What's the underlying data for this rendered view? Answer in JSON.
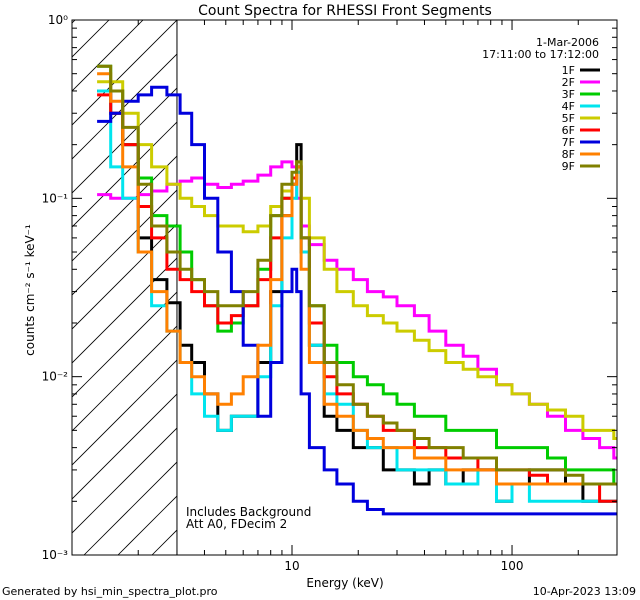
{
  "chart_data": {
    "type": "line",
    "title": "Count Spectra for RHESSI Front Segments",
    "xlabel": "Energy (keV)",
    "ylabel": "counts cm⁻² s⁻¹ keV⁻¹",
    "xscale": "log",
    "yscale": "log",
    "xlim": [
      1.0,
      300
    ],
    "ylim": [
      0.001,
      1.0
    ],
    "x_tick_labels": [
      "10",
      "100"
    ],
    "y_tick_labels": [
      "10⁻³",
      "10⁻²",
      "10⁻¹",
      "10⁰"
    ],
    "date": "1-Mar-2006",
    "time_range": "17:11:00 to 17:12:00",
    "shaded_region": {
      "from": 1.0,
      "to": 3.0,
      "style": "hatched"
    },
    "annotations": [
      "Includes Background",
      "Att A0, FDecim 2"
    ],
    "footer_left": "Generated by hsi_min_spectra_plot.pro",
    "footer_right": "10-Apr-2023 13:09",
    "energy": [
      1.3,
      1.5,
      1.7,
      2.0,
      2.3,
      2.7,
      3.1,
      3.5,
      4.0,
      4.6,
      5.3,
      6.0,
      7.0,
      8.0,
      9.0,
      10.0,
      10.5,
      11.0,
      12.0,
      14.0,
      16.0,
      19.0,
      22.0,
      26.0,
      30.0,
      36.0,
      42.0,
      50.0,
      60.0,
      70.0,
      85.0,
      100.0,
      120.0,
      145.0,
      175.0,
      210.0,
      250.0,
      290.0
    ],
    "series": [
      {
        "name": "1F",
        "color": "#000000",
        "values": [
          0.4,
          0.3,
          0.2,
          0.06,
          0.035,
          0.026,
          0.015,
          0.012,
          0.008,
          0.005,
          0.006,
          0.006,
          0.012,
          0.03,
          0.08,
          0.12,
          0.2,
          0.05,
          0.015,
          0.006,
          0.005,
          0.004,
          0.004,
          0.003,
          0.003,
          0.0025,
          0.003,
          0.0025,
          0.003,
          0.003,
          0.002,
          0.0025,
          0.003,
          0.003,
          0.0025,
          0.002,
          0.002,
          0.002
        ]
      },
      {
        "name": "2F",
        "color": "#ff00ff",
        "values": [
          0.105,
          0.1,
          0.1,
          0.105,
          0.11,
          0.12,
          0.125,
          0.13,
          0.12,
          0.115,
          0.12,
          0.125,
          0.135,
          0.15,
          0.16,
          0.15,
          0.1,
          0.07,
          0.055,
          0.045,
          0.04,
          0.035,
          0.03,
          0.028,
          0.025,
          0.022,
          0.018,
          0.015,
          0.013,
          0.011,
          0.009,
          0.008,
          0.007,
          0.006,
          0.005,
          0.0045,
          0.004,
          0.0035
        ]
      },
      {
        "name": "3F",
        "color": "#00cc00",
        "values": [
          0.55,
          0.4,
          0.2,
          0.13,
          0.08,
          0.07,
          0.05,
          0.035,
          0.025,
          0.018,
          0.02,
          0.025,
          0.04,
          0.08,
          0.1,
          0.13,
          0.15,
          0.06,
          0.025,
          0.015,
          0.012,
          0.01,
          0.009,
          0.008,
          0.007,
          0.006,
          0.006,
          0.005,
          0.005,
          0.005,
          0.004,
          0.004,
          0.004,
          0.0035,
          0.003,
          0.003,
          0.003,
          0.0025
        ]
      },
      {
        "name": "4F",
        "color": "#00e5ee",
        "values": [
          0.4,
          0.15,
          0.1,
          0.05,
          0.025,
          0.018,
          0.012,
          0.008,
          0.006,
          0.005,
          0.006,
          0.006,
          0.01,
          0.025,
          0.06,
          0.1,
          0.14,
          0.05,
          0.015,
          0.008,
          0.007,
          0.005,
          0.004,
          0.004,
          0.003,
          0.003,
          0.003,
          0.0025,
          0.0025,
          0.003,
          0.002,
          0.0025,
          0.002,
          0.002,
          0.002,
          0.002,
          0.002,
          0.002
        ]
      },
      {
        "name": "5F",
        "color": "#cccc00",
        "values": [
          0.45,
          0.45,
          0.3,
          0.2,
          0.15,
          0.12,
          0.1,
          0.09,
          0.08,
          0.07,
          0.07,
          0.065,
          0.07,
          0.09,
          0.11,
          0.13,
          0.16,
          0.1,
          0.06,
          0.04,
          0.03,
          0.025,
          0.022,
          0.02,
          0.018,
          0.016,
          0.014,
          0.012,
          0.011,
          0.01,
          0.009,
          0.008,
          0.007,
          0.0065,
          0.006,
          0.005,
          0.005,
          0.0045
        ]
      },
      {
        "name": "6F",
        "color": "#ff0000",
        "values": [
          0.38,
          0.3,
          0.2,
          0.09,
          0.06,
          0.04,
          0.035,
          0.03,
          0.025,
          0.02,
          0.022,
          0.025,
          0.035,
          0.06,
          0.1,
          0.13,
          0.15,
          0.06,
          0.02,
          0.01,
          0.008,
          0.007,
          0.006,
          0.005,
          0.005,
          0.004,
          0.004,
          0.0035,
          0.0035,
          0.003,
          0.003,
          0.003,
          0.0028,
          0.0025,
          0.0025,
          0.0025,
          0.002,
          0.002
        ]
      },
      {
        "name": "7F",
        "color": "#0000dd",
        "values": [
          0.27,
          0.3,
          0.35,
          0.38,
          0.42,
          0.38,
          0.3,
          0.2,
          0.1,
          0.05,
          0.03,
          0.015,
          0.006,
          0.012,
          0.03,
          0.04,
          0.03,
          0.008,
          0.004,
          0.003,
          0.0025,
          0.002,
          0.0018,
          0.0017,
          0.0017,
          0.0017,
          0.0017,
          0.0017,
          0.0017,
          0.0017,
          0.0017,
          0.0017,
          0.0017,
          0.0017,
          0.0017,
          0.0017,
          0.0017,
          0.0017
        ]
      },
      {
        "name": "8F",
        "color": "#ff8000",
        "values": [
          0.5,
          0.35,
          0.15,
          0.05,
          0.03,
          0.018,
          0.012,
          0.01,
          0.008,
          0.007,
          0.008,
          0.01,
          0.015,
          0.035,
          0.08,
          0.12,
          0.15,
          0.04,
          0.012,
          0.007,
          0.006,
          0.005,
          0.0045,
          0.004,
          0.004,
          0.0035,
          0.0035,
          0.003,
          0.003,
          0.003,
          0.0025,
          0.0025,
          0.0025,
          0.0025,
          0.0025,
          0.0025,
          0.0025,
          0.0025
        ]
      },
      {
        "name": "9F",
        "color": "#808000",
        "values": [
          0.55,
          0.4,
          0.25,
          0.12,
          0.07,
          0.05,
          0.04,
          0.035,
          0.03,
          0.025,
          0.025,
          0.03,
          0.045,
          0.08,
          0.12,
          0.14,
          0.16,
          0.06,
          0.025,
          0.012,
          0.009,
          0.007,
          0.006,
          0.0055,
          0.005,
          0.0045,
          0.004,
          0.004,
          0.0035,
          0.0035,
          0.003,
          0.003,
          0.003,
          0.003,
          0.0028,
          0.0025,
          0.0025,
          0.0025
        ]
      }
    ]
  }
}
